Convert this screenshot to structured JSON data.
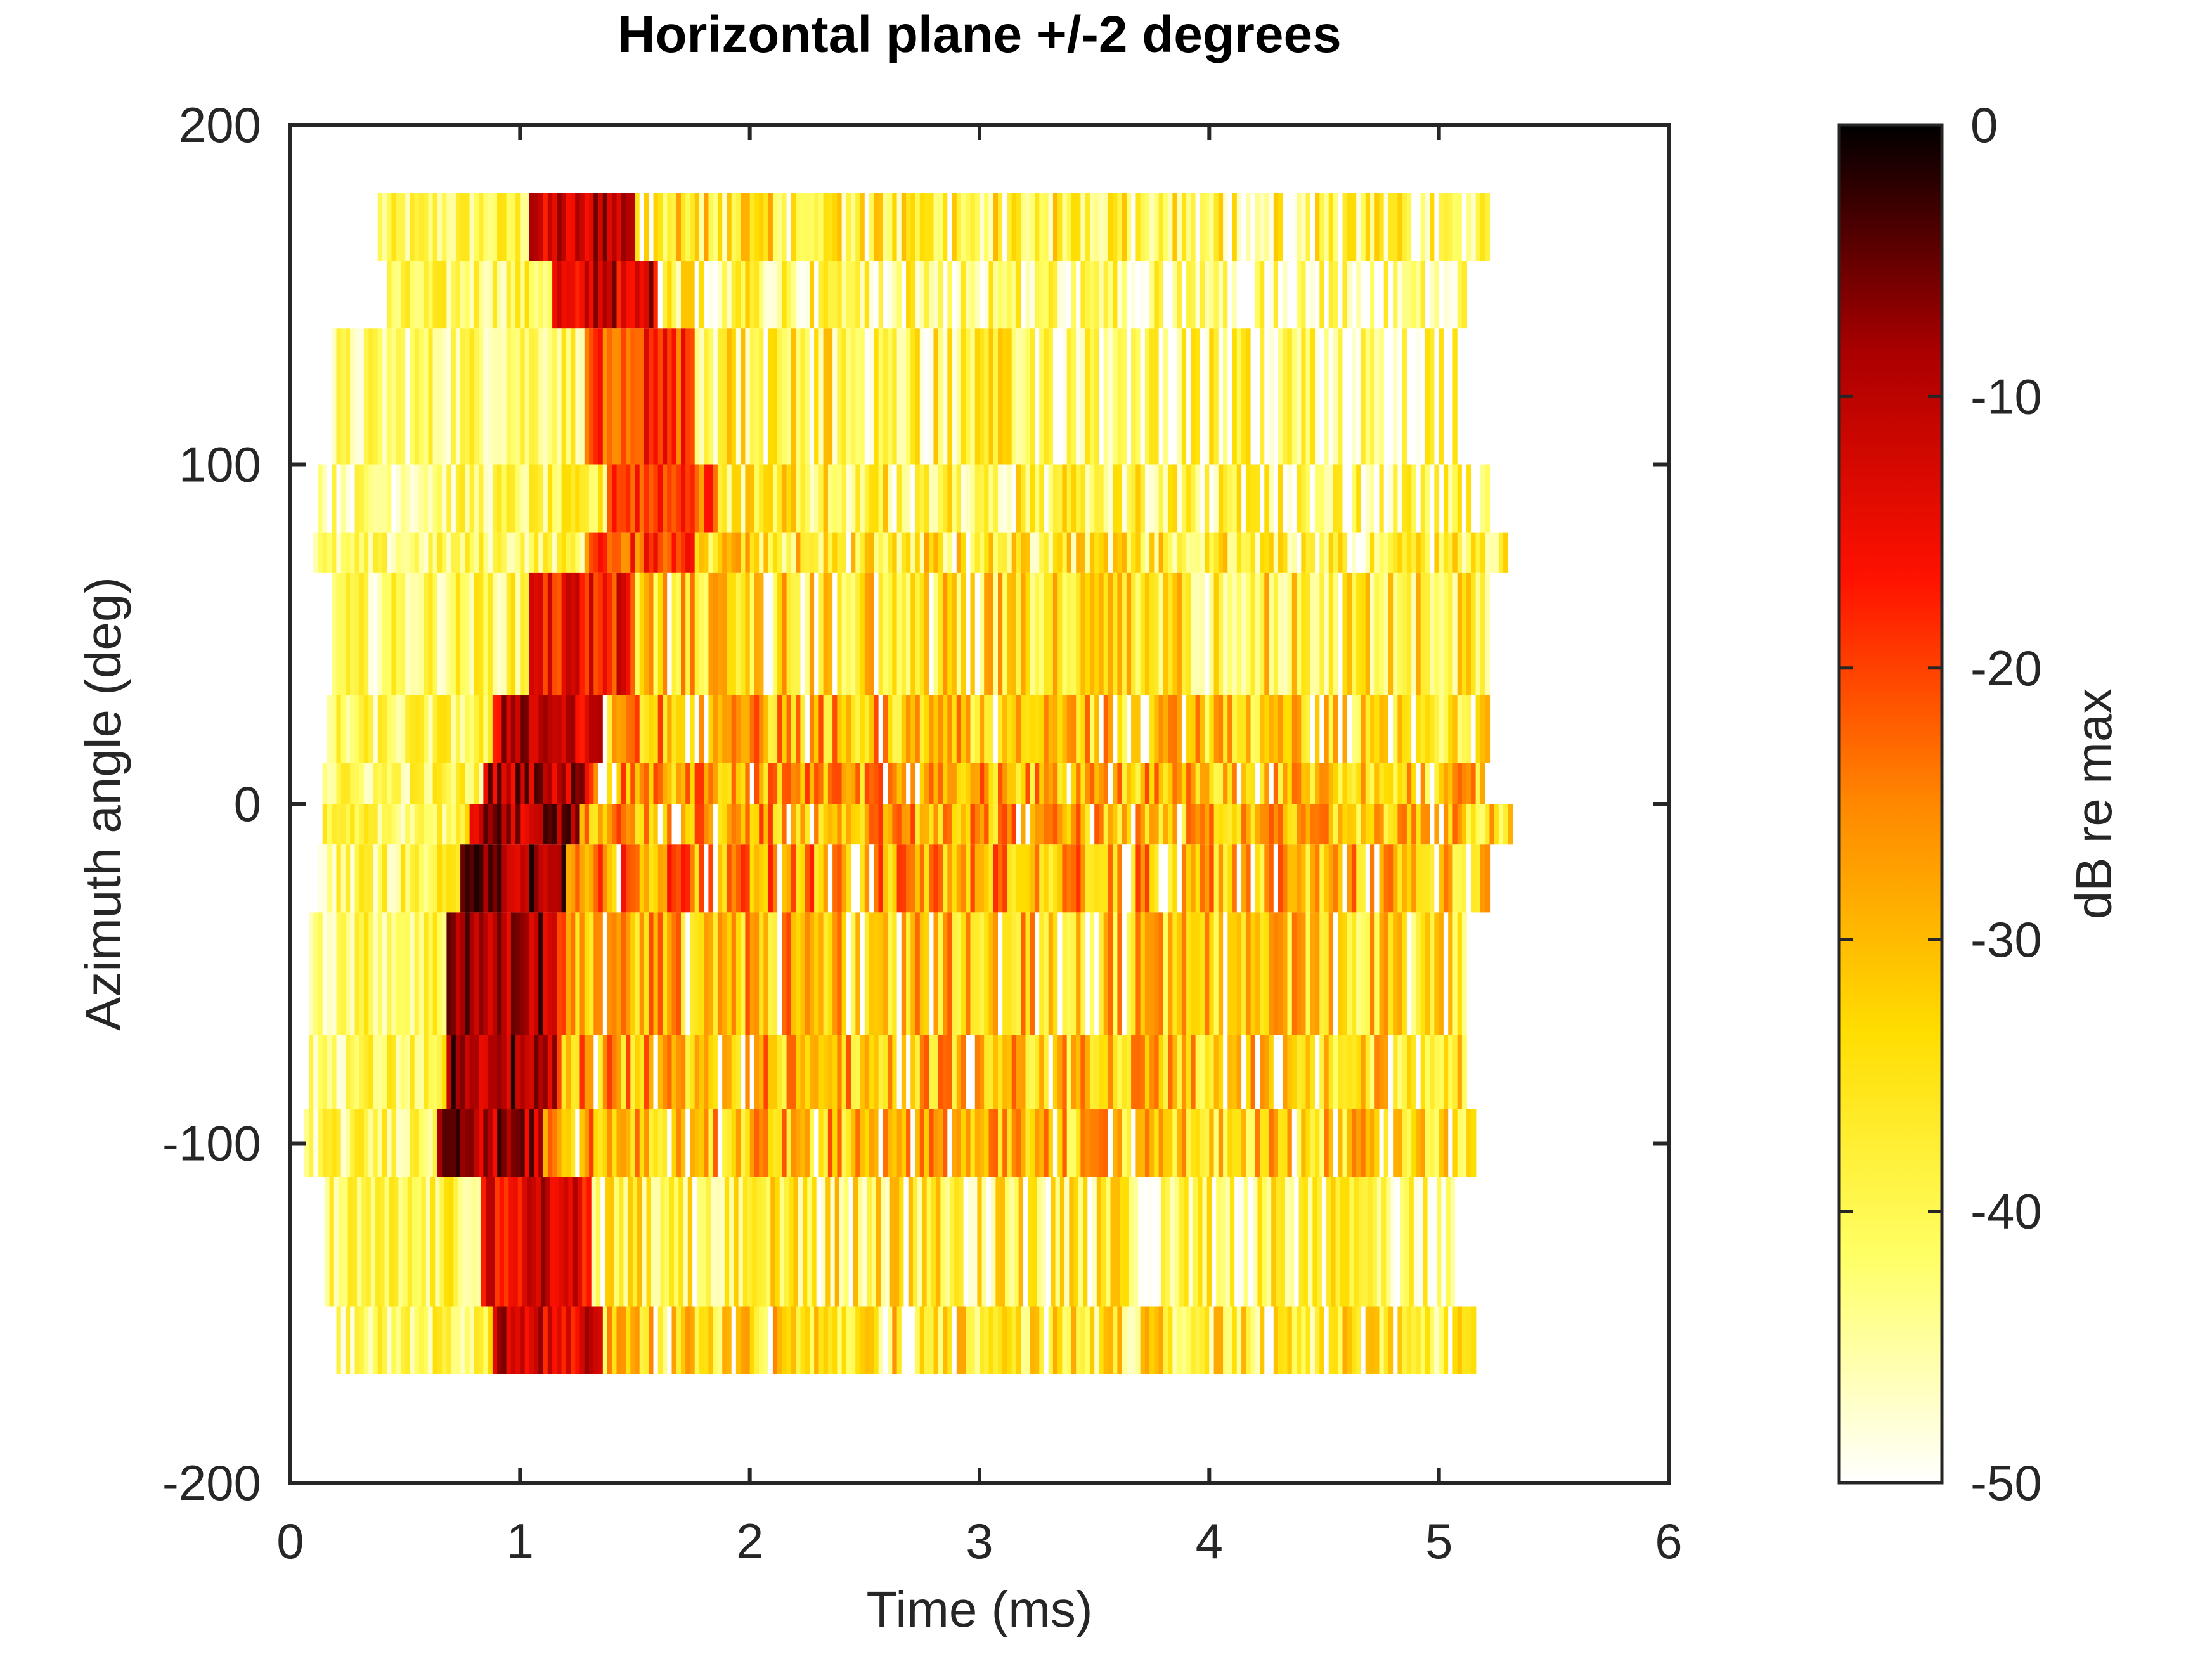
{
  "chart_data": {
    "type": "heatmap",
    "title": "Horizontal plane +/-2 degrees",
    "xlabel": "Time (ms)",
    "ylabel": "Azimuth angle (deg)",
    "xlim": [
      0,
      6
    ],
    "ylim": [
      -200,
      200
    ],
    "x_ticks": [
      "0",
      "1",
      "2",
      "3",
      "4",
      "5",
      "6"
    ],
    "y_ticks": [
      "200",
      "100",
      "0",
      "-100",
      "-200"
    ],
    "colorbar": {
      "label": "dB re max",
      "range": [
        -50,
        0
      ],
      "ticks": [
        "0",
        "-10",
        "-20",
        "-30",
        "-40",
        "-50"
      ],
      "colormap": "hot",
      "colors": [
        "#ffffff",
        "#ffff66",
        "#ffdd00",
        "#ff8800",
        "#ff1100",
        "#aa0000",
        "#000000"
      ]
    },
    "time_range_ms": [
      0.1,
      5.25
    ],
    "rows": [
      {
        "azimuth_range": [
          160,
          180
        ],
        "start_ms": 0.38,
        "end_ms": 5.2,
        "onset_ms": 1.15,
        "onset_db": -4,
        "tail_db": -36
      },
      {
        "azimuth_range": [
          140,
          160
        ],
        "start_ms": 0.42,
        "end_ms": 5.1,
        "onset_ms": 1.25,
        "onset_db": -5,
        "tail_db": -40
      },
      {
        "azimuth_range": [
          100,
          140
        ],
        "start_ms": 0.18,
        "end_ms": 5.1,
        "onset_ms": 1.4,
        "onset_db": -12,
        "tail_db": -38
      },
      {
        "azimuth_range": [
          80,
          100
        ],
        "start_ms": 0.12,
        "end_ms": 5.2,
        "onset_ms": 1.5,
        "onset_db": -14,
        "tail_db": -38
      },
      {
        "azimuth_range": [
          68,
          80
        ],
        "start_ms": 0.1,
        "end_ms": 5.3,
        "onset_ms": 1.4,
        "onset_db": -14,
        "tail_db": -35
      },
      {
        "azimuth_range": [
          32,
          68
        ],
        "start_ms": 0.18,
        "end_ms": 5.2,
        "onset_ms": 1.15,
        "onset_db": -9,
        "tail_db": -32
      },
      {
        "azimuth_range": [
          12,
          32
        ],
        "start_ms": 0.16,
        "end_ms": 5.2,
        "onset_ms": 1.0,
        "onset_db": -4,
        "tail_db": -28
      },
      {
        "azimuth_range": [
          0,
          12
        ],
        "start_ms": 0.14,
        "end_ms": 5.2,
        "onset_ms": 0.95,
        "onset_db": -3,
        "tail_db": -26
      },
      {
        "azimuth_range": [
          -12,
          0
        ],
        "start_ms": 0.14,
        "end_ms": 5.3,
        "onset_ms": 0.9,
        "onset_db": -2,
        "tail_db": -26
      },
      {
        "azimuth_range": [
          -32,
          -12
        ],
        "start_ms": 0.12,
        "end_ms": 5.2,
        "onset_ms": 0.85,
        "onset_db": -1,
        "tail_db": -25
      },
      {
        "azimuth_range": [
          -68,
          -32
        ],
        "start_ms": 0.08,
        "end_ms": 5.1,
        "onset_ms": 0.8,
        "onset_db": -2,
        "tail_db": -28
      },
      {
        "azimuth_range": [
          -90,
          -68
        ],
        "start_ms": 0.08,
        "end_ms": 5.1,
        "onset_ms": 0.8,
        "onset_db": -1,
        "tail_db": -28
      },
      {
        "azimuth_range": [
          -110,
          -90
        ],
        "start_ms": 0.06,
        "end_ms": 5.15,
        "onset_ms": 0.75,
        "onset_db": -2,
        "tail_db": -28
      },
      {
        "azimuth_range": [
          -148,
          -110
        ],
        "start_ms": 0.15,
        "end_ms": 5.1,
        "onset_ms": 0.95,
        "onset_db": -6,
        "tail_db": -36
      },
      {
        "azimuth_range": [
          -168,
          -148
        ],
        "start_ms": 0.2,
        "end_ms": 5.15,
        "onset_ms": 1.0,
        "onset_db": -5,
        "tail_db": -33
      }
    ]
  }
}
